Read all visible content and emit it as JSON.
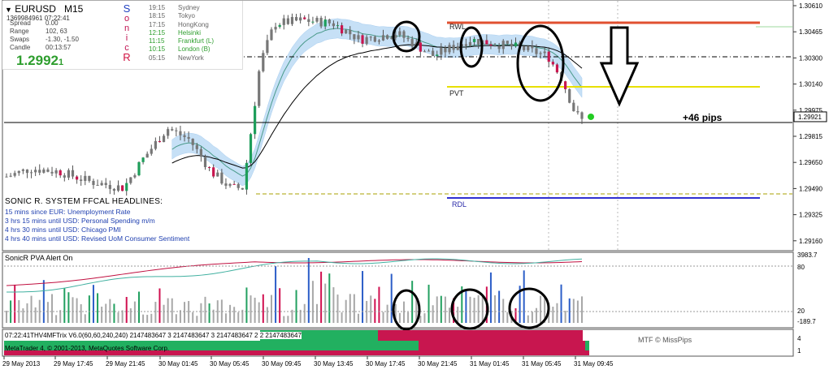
{
  "symbol": {
    "pair": "EURUSD",
    "timeframe": "M15",
    "timestamp": "1369984961 07:22:41"
  },
  "stats": [
    {
      "label": "Spread",
      "value": "0.00"
    },
    {
      "label": "Range",
      "value": "102, 63"
    },
    {
      "label": "Swaps",
      "value": "-1.30, -1.50"
    },
    {
      "label": "Candle",
      "value": "00:13:57"
    }
  ],
  "price_big": "1.2992",
  "price_small": "1",
  "sonic_letters": [
    "S",
    "o",
    "n",
    "i",
    "c",
    "R"
  ],
  "sessions": [
    {
      "time": "19:15",
      "name": "Sydney",
      "color": "#666666"
    },
    {
      "time": "18:15",
      "name": "Tokyo",
      "color": "#666666"
    },
    {
      "time": "17:15",
      "name": "HongKong",
      "color": "#666666"
    },
    {
      "time": "12:15",
      "name": "Helsinki",
      "color": "#2e9e2e"
    },
    {
      "time": "11:15",
      "name": "Frankfurt (L)",
      "color": "#2e9e2e"
    },
    {
      "time": "10:15",
      "name": "London (B)",
      "color": "#2e9e2e"
    },
    {
      "time": "05:15",
      "name": "NewYork",
      "color": "#666666"
    }
  ],
  "ffcal_title": "SONIC R. SYSTEM  FFCAL HEADLINES:",
  "headlines": [
    "15 mins since EUR: Unemployment Rate",
    "3 hrs 15 mins until USD: Personal Spending m/m",
    "4 hrs 30 mins until USD: Chicago PMI",
    "4 hrs 40 mins until USD: Revised UoM Consumer Sentiment"
  ],
  "level_labels": {
    "rwl": "RWL",
    "pvt": "PVT",
    "rdl": "RDL"
  },
  "pips_label": "+46 pips",
  "price_axis": [
    "1.30610",
    "1.30465",
    "1.30300",
    "1.30140",
    "1.29975",
    "1.29815",
    "1.29650",
    "1.29490",
    "1.29325",
    "1.29160"
  ],
  "current_price_tag": "1.29921",
  "indicator1": {
    "title": "SonicR PVA   Alert On",
    "axis": [
      "3983.7",
      "80",
      "20",
      "-189.7"
    ]
  },
  "indicator2": {
    "text": "07:22:41THV4MFTrix V6.0(60,60,240,240) 2147483647 3 2147483647 3 2147483647 2 2 2147483647",
    "copyright": "MetaTrader 4, © 2001-2013, MetaQuotes Software Corp.",
    "mtf": "MTF © MissPips",
    "axis": [
      "4",
      "1"
    ]
  },
  "time_axis": [
    "29 May 2013",
    "29 May 17:45",
    "29 May 21:45",
    "30 May 01:45",
    "30 May 05:45",
    "30 May 09:45",
    "30 May 13:45",
    "30 May 17:45",
    "30 May 21:45",
    "31 May 01:45",
    "31 May 05:45",
    "31 May 09:45"
  ],
  "colors": {
    "bull": "#1e9e5a",
    "bear": "#c8164f",
    "neutral": "#777777",
    "rwl": "#e05030",
    "pvt": "#e8e000",
    "rdl": "#3030d0",
    "band": "#c6e0f6",
    "vol_blue": "#2c5ec8",
    "vol_green": "#22a060",
    "vol_red": "#d01050",
    "vol_grey": "#a8a8a8"
  }
}
